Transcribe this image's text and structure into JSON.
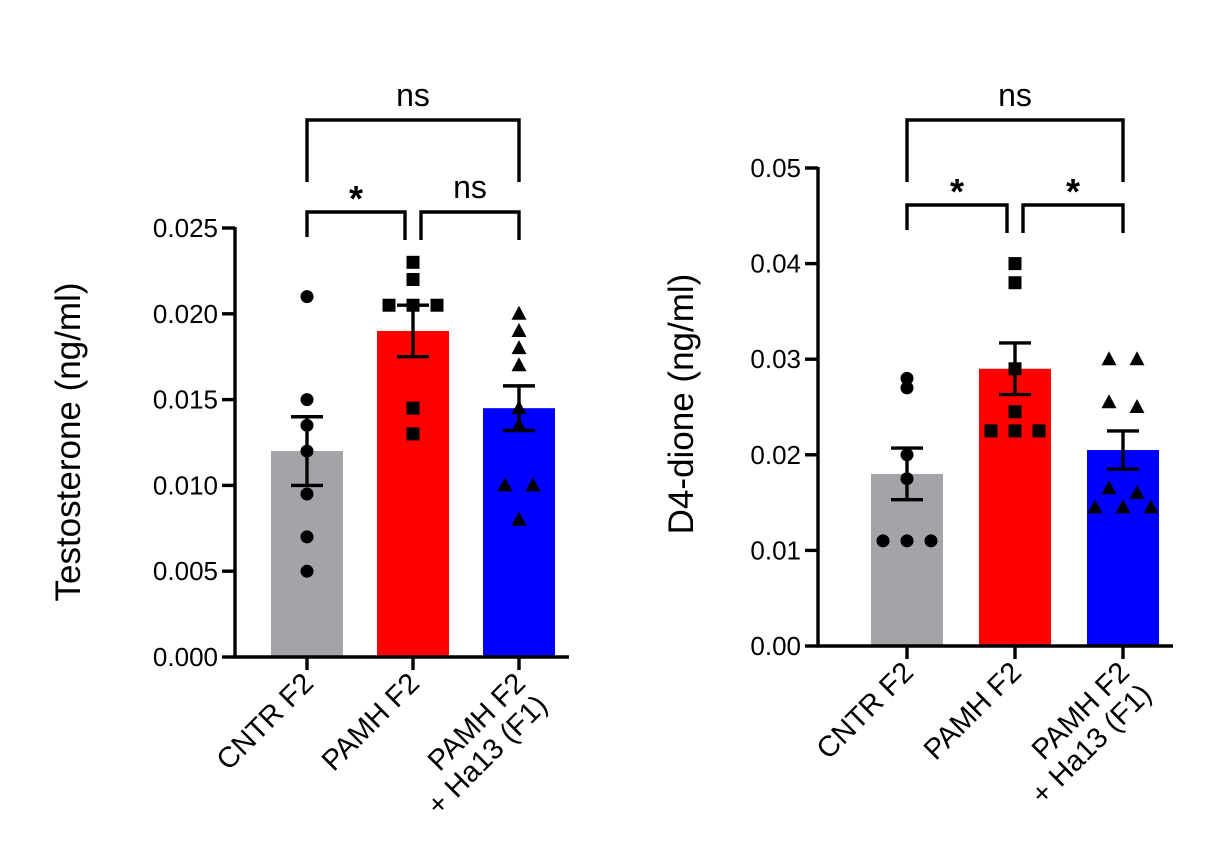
{
  "chart_data": [
    {
      "type": "bar",
      "title": "",
      "ylabel": "Testosterone (ng/ml)",
      "xlabel": "",
      "ylim": [
        0,
        0.025
      ],
      "yticks": [
        "0.000",
        "0.005",
        "0.010",
        "0.015",
        "0.020",
        "0.025"
      ],
      "ytick_values": [
        0,
        0.005,
        0.01,
        0.015,
        0.02,
        0.025
      ],
      "categories": [
        "CNTR F2",
        "PAMH F2",
        "PAMH F2 + Ha13 (F1)"
      ],
      "category_lines": [
        [
          "CNTR F2"
        ],
        [
          "PAMH F2"
        ],
        [
          "PAMH F2",
          "+ Ha13 (F1)"
        ]
      ],
      "bar_colors": [
        "#a3a3a8",
        "#fe0000",
        "#0000fe"
      ],
      "values": [
        0.012,
        0.019,
        0.0145
      ],
      "sem": [
        0.002,
        0.0015,
        0.0013
      ],
      "markers": [
        "circle",
        "square",
        "triangle"
      ],
      "points": [
        [
          0.021,
          0.015,
          0.0135,
          0.012,
          0.0095,
          0.007,
          0.005
        ],
        [
          0.023,
          0.022,
          0.0205,
          0.0205,
          0.0205,
          0.0145,
          0.013
        ],
        [
          0.02,
          0.019,
          0.018,
          0.017,
          0.0145,
          0.0135,
          0.01,
          0.01,
          0.008
        ]
      ],
      "significance": [
        {
          "from": 0,
          "to": 1,
          "label": "*"
        },
        {
          "from": 1,
          "to": 2,
          "label": "ns"
        },
        {
          "from": 0,
          "to": 2,
          "label": "ns"
        }
      ]
    },
    {
      "type": "bar",
      "title": "",
      "ylabel": "D4-dione (ng/ml)",
      "xlabel": "",
      "ylim": [
        0,
        0.05
      ],
      "yticks": [
        "0.00",
        "0.01",
        "0.02",
        "0.03",
        "0.04",
        "0.05"
      ],
      "ytick_values": [
        0,
        0.01,
        0.02,
        0.03,
        0.04,
        0.05
      ],
      "categories": [
        "CNTR F2",
        "PAMH F2",
        "PAMH F2 + Ha13 (F1)"
      ],
      "category_lines": [
        [
          "CNTR F2"
        ],
        [
          "PAMH F2"
        ],
        [
          "PAMH F2",
          "+ Ha13 (F1)"
        ]
      ],
      "bar_colors": [
        "#a3a3a8",
        "#fe0000",
        "#0000fe"
      ],
      "values": [
        0.018,
        0.029,
        0.0205
      ],
      "sem": [
        0.0027,
        0.0027,
        0.002
      ],
      "markers": [
        "circle",
        "square",
        "triangle"
      ],
      "points": [
        [
          0.028,
          0.027,
          0.02,
          0.0175,
          0.011,
          0.011,
          0.011
        ],
        [
          0.04,
          0.038,
          0.029,
          0.0245,
          0.0225,
          0.0225,
          0.0225
        ],
        [
          0.03,
          0.03,
          0.0255,
          0.025,
          0.0165,
          0.016,
          0.0145,
          0.0145,
          0.0145
        ]
      ],
      "significance": [
        {
          "from": 0,
          "to": 1,
          "label": "*"
        },
        {
          "from": 1,
          "to": 2,
          "label": "*"
        },
        {
          "from": 0,
          "to": 2,
          "label": "ns"
        }
      ]
    }
  ]
}
